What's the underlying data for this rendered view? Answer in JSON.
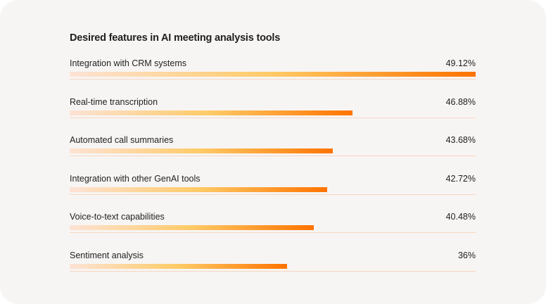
{
  "chart_data": {
    "type": "bar",
    "orientation": "horizontal",
    "title": "Desired features in AI meeting analysis tools",
    "categories": [
      "Integration with CRM systems",
      "Real-time transcription",
      "Automated call summaries",
      "Integration with other GenAI tools",
      "Voice-to-text capabilities",
      "Sentiment analysis"
    ],
    "values": [
      49.12,
      46.88,
      43.68,
      42.72,
      40.48,
      36
    ],
    "value_labels": [
      "49.12%",
      "46.88%",
      "43.68%",
      "42.72%",
      "40.48%",
      "36%"
    ],
    "bar_fill": [
      1.0,
      0.697,
      0.648,
      0.634,
      0.601,
      0.536
    ],
    "grid": false,
    "legend": "none",
    "colors": {
      "gradient_start": "#fde3d6",
      "gradient_mid": "#ffca66",
      "gradient_end": "#ff7300",
      "track": "#f6d6c2"
    }
  }
}
